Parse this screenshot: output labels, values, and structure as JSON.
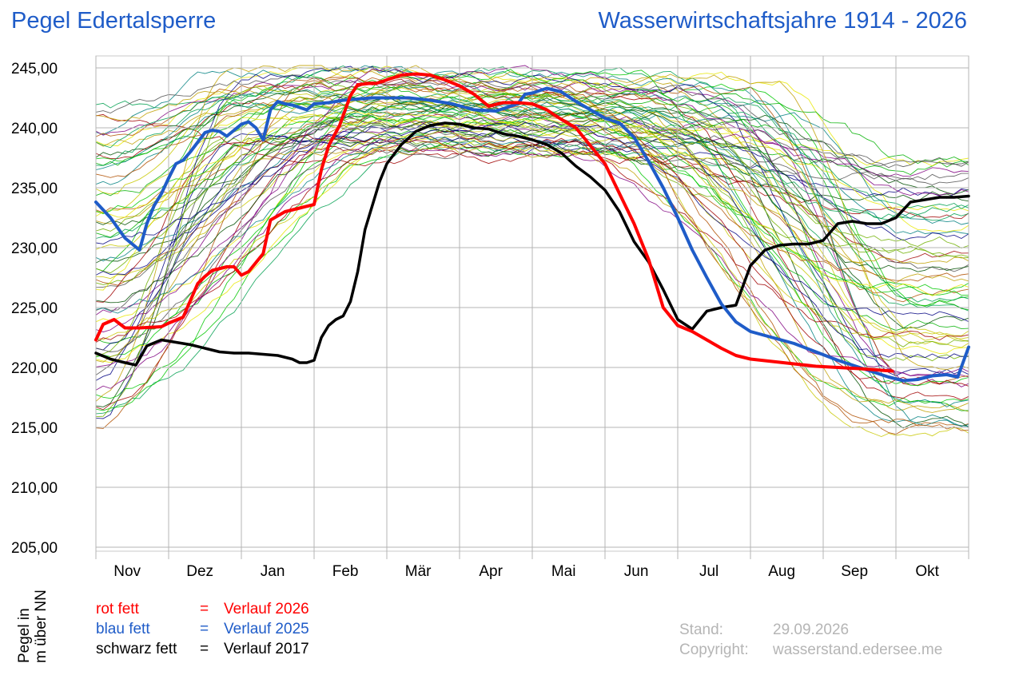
{
  "header": {
    "title": "Pegel Edertalsperre",
    "subtitle": "Wasserwirtschaftsjahre 1914 - 2026"
  },
  "axis": {
    "ylabel_line1": "Pegel in",
    "ylabel_line2": "m über NN"
  },
  "legend": [
    {
      "key": "rot fett",
      "eq": "=",
      "label": "Verlauf 2026",
      "color": "#ff0000"
    },
    {
      "key": "blau fett",
      "eq": "=",
      "label": "Verlauf 2025",
      "color": "#1f5cc8"
    },
    {
      "key": "schwarz fett",
      "eq": "=",
      "label": "Verlauf 2017",
      "color": "#000000"
    }
  ],
  "info": {
    "stand_label": "Stand:",
    "stand_value": "29.09.2026",
    "copyright_label": "Copyright:",
    "copyright_value": "wasserstand.edersee.me"
  },
  "chart_data": {
    "type": "line",
    "title": "Pegel Edertalsperre",
    "subtitle": "Wasserwirtschaftsjahre 1914 - 2026",
    "ylabel": "Pegel in m über NN",
    "ylim": [
      205,
      245
    ],
    "yticks": [
      205,
      210,
      215,
      220,
      225,
      230,
      235,
      240,
      245
    ],
    "ytick_labels": [
      "205,00",
      "210,00",
      "215,00",
      "220,00",
      "225,00",
      "230,00",
      "235,00",
      "240,00",
      "245,00"
    ],
    "xlim": [
      0,
      12
    ],
    "months": [
      "Nov",
      "Dez",
      "Jan",
      "Feb",
      "Mär",
      "Apr",
      "Mai",
      "Jun",
      "Jul",
      "Aug",
      "Sep",
      "Okt"
    ],
    "grid": true,
    "background_series_note": "",
    "series": [
      {
        "name": "Verlauf 2026",
        "color": "#ff0000",
        "width": 4,
        "x": [
          0,
          0.1,
          0.25,
          0.4,
          0.6,
          0.9,
          1.0,
          1.2,
          1.4,
          1.5,
          1.6,
          1.8,
          1.9,
          2.0,
          2.1,
          2.3,
          2.4,
          2.6,
          2.8,
          3.0,
          3.1,
          3.2,
          3.35,
          3.5,
          3.6,
          3.75,
          3.85,
          4.0,
          4.2,
          4.4,
          4.6,
          4.8,
          5.0,
          5.2,
          5.4,
          5.6,
          5.8,
          6.0,
          6.2,
          6.4,
          6.6,
          6.8,
          7.0,
          7.2,
          7.4,
          7.6,
          7.8,
          8.0,
          8.2,
          8.4,
          8.6,
          8.8,
          9.0,
          9.3,
          9.6,
          9.9,
          10.2,
          10.5,
          10.95
        ],
        "y": [
          222.3,
          223.6,
          224.0,
          223.3,
          223.3,
          223.4,
          223.7,
          224.2,
          227.0,
          227.6,
          228.1,
          228.4,
          228.4,
          227.7,
          228.0,
          229.5,
          232.3,
          233.0,
          233.3,
          233.6,
          236.5,
          238.5,
          240.2,
          242.7,
          243.6,
          243.7,
          243.7,
          244.0,
          244.4,
          244.5,
          244.4,
          244.0,
          243.5,
          242.8,
          241.8,
          242.1,
          242.1,
          242.0,
          241.5,
          240.7,
          240.0,
          238.5,
          237.0,
          234.5,
          232.0,
          229.0,
          225.0,
          223.5,
          223.0,
          222.3,
          221.6,
          221.0,
          220.7,
          220.5,
          220.3,
          220.1,
          220.0,
          219.9,
          219.7
        ]
      },
      {
        "name": "Verlauf 2025",
        "color": "#1f5cc8",
        "width": 4,
        "x": [
          0,
          0.2,
          0.4,
          0.6,
          0.7,
          0.8,
          0.9,
          1.0,
          1.1,
          1.2,
          1.3,
          1.4,
          1.5,
          1.6,
          1.7,
          1.8,
          1.9,
          2.0,
          2.1,
          2.2,
          2.3,
          2.4,
          2.5,
          2.6,
          2.7,
          2.8,
          2.9,
          3.0,
          3.2,
          3.4,
          3.6,
          3.8,
          4.0,
          4.3,
          4.6,
          4.9,
          5.2,
          5.5,
          5.8,
          5.9,
          6.0,
          6.2,
          6.4,
          6.6,
          6.8,
          7.0,
          7.2,
          7.4,
          7.6,
          7.8,
          8.0,
          8.2,
          8.4,
          8.6,
          8.8,
          9.0,
          9.3,
          9.6,
          9.9,
          10.2,
          10.5,
          10.7,
          10.9,
          11.1,
          11.3,
          11.5,
          11.7,
          11.85,
          12.0
        ],
        "y": [
          233.8,
          232.5,
          230.8,
          229.8,
          232.0,
          233.5,
          234.5,
          235.8,
          237.0,
          237.3,
          238.0,
          238.8,
          239.6,
          239.8,
          239.7,
          239.3,
          239.8,
          240.3,
          240.5,
          240.0,
          239.0,
          241.5,
          242.2,
          242.0,
          241.9,
          241.7,
          241.5,
          242.0,
          242.1,
          242.3,
          242.4,
          242.5,
          242.5,
          242.5,
          242.3,
          242.0,
          241.5,
          241.4,
          242.0,
          242.8,
          242.9,
          243.3,
          243.0,
          242.2,
          241.5,
          240.8,
          240.4,
          239.2,
          237.2,
          235.0,
          232.5,
          229.8,
          227.5,
          225.3,
          223.8,
          223.0,
          222.5,
          222.0,
          221.3,
          220.6,
          220.0,
          219.6,
          219.2,
          218.9,
          219.0,
          219.3,
          219.4,
          219.2,
          221.7
        ]
      },
      {
        "name": "Verlauf 2017",
        "color": "#000000",
        "width": 3.5,
        "x": [
          0,
          0.2,
          0.4,
          0.55,
          0.7,
          0.9,
          1.1,
          1.3,
          1.5,
          1.7,
          1.9,
          2.1,
          2.3,
          2.5,
          2.7,
          2.8,
          2.9,
          3.0,
          3.1,
          3.2,
          3.3,
          3.4,
          3.5,
          3.6,
          3.7,
          3.8,
          3.9,
          4.0,
          4.2,
          4.4,
          4.6,
          4.8,
          5.0,
          5.2,
          5.4,
          5.6,
          5.8,
          6.0,
          6.2,
          6.4,
          6.6,
          6.8,
          7.0,
          7.2,
          7.4,
          7.6,
          7.8,
          8.0,
          8.2,
          8.4,
          8.6,
          8.8,
          9.0,
          9.2,
          9.4,
          9.6,
          9.8,
          10.0,
          10.2,
          10.4,
          10.6,
          10.8,
          11.0,
          11.2,
          11.4,
          11.6,
          11.8,
          12.0
        ],
        "y": [
          221.2,
          220.7,
          220.4,
          220.2,
          221.8,
          222.3,
          222.1,
          221.9,
          221.6,
          221.3,
          221.2,
          221.2,
          221.1,
          221.0,
          220.7,
          220.4,
          220.4,
          220.6,
          222.5,
          223.5,
          224.0,
          224.3,
          225.5,
          228.0,
          231.5,
          233.5,
          235.5,
          237.0,
          238.6,
          239.7,
          240.2,
          240.4,
          240.3,
          240.0,
          239.9,
          239.5,
          239.3,
          239.0,
          238.6,
          237.9,
          236.8,
          235.9,
          234.8,
          233.0,
          230.5,
          228.8,
          226.5,
          224.0,
          223.2,
          224.7,
          225.0,
          225.2,
          228.5,
          229.8,
          230.2,
          230.3,
          230.3,
          230.6,
          232.0,
          232.2,
          232.0,
          232.0,
          232.5,
          233.8,
          234.0,
          234.2,
          234.2,
          234.3
        ]
      }
    ]
  }
}
